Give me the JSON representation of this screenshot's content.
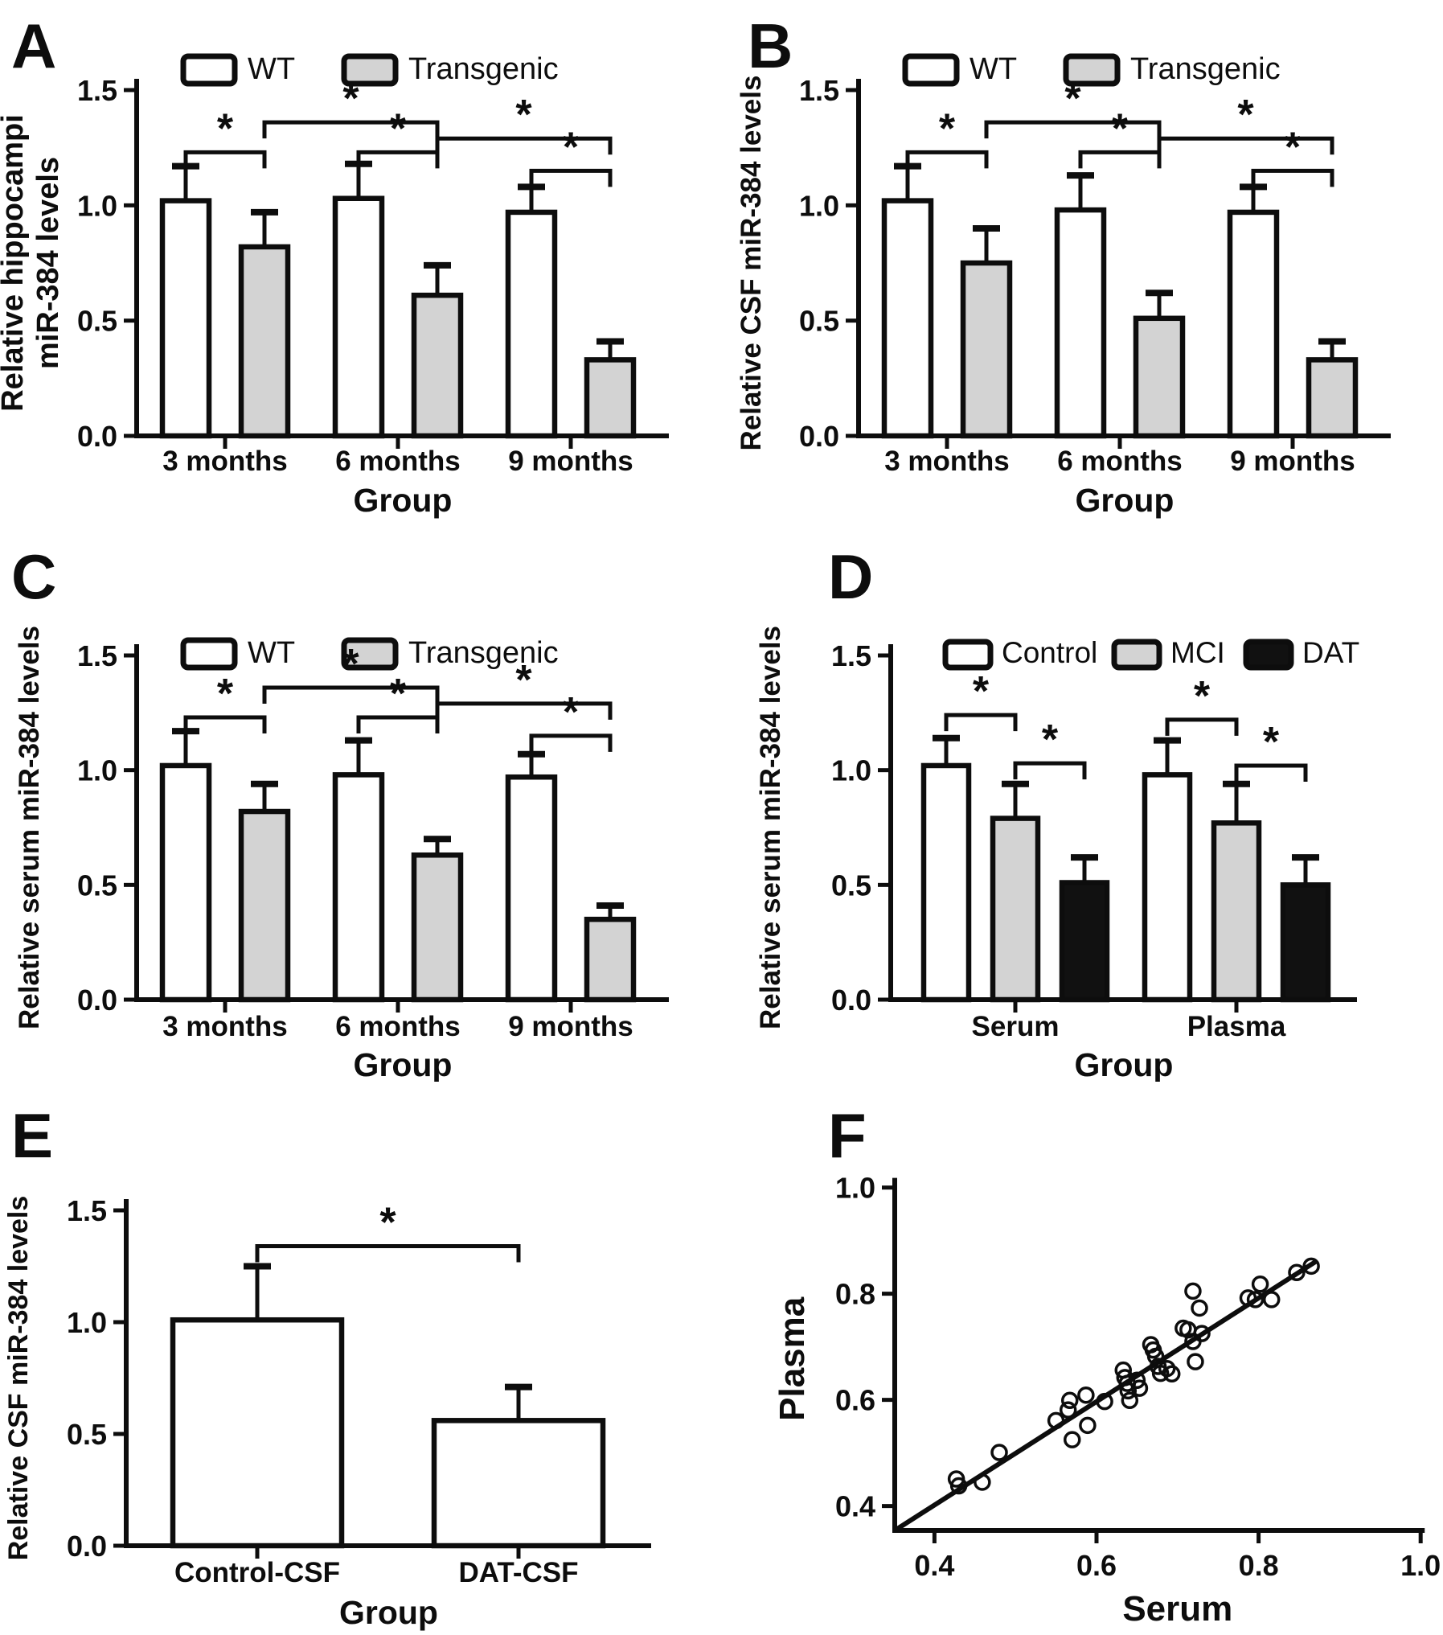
{
  "figure": {
    "background": "#ffffff",
    "ink_color": "#0d0d0d",
    "bar_fill_white": "#ffffff",
    "bar_fill_gray": "#d3d3d3",
    "bar_fill_black": "#111111",
    "significance_symbol": "*"
  },
  "chart_data": [
    {
      "id": "A",
      "type": "bar",
      "panel_letter": "A",
      "ylabel_lines": [
        "Relative hippocampi",
        "miR-384 levels"
      ],
      "xlabel": "Group",
      "yticks": [
        "0.0",
        "0.5",
        "1.0",
        "1.5"
      ],
      "ylim": [
        0,
        1.5
      ],
      "categories": [
        "3 months",
        "6 months",
        "9 months"
      ],
      "series": [
        {
          "name": "WT",
          "fill": "#ffffff",
          "values": [
            1.02,
            1.03,
            0.97
          ],
          "errors": [
            0.15,
            0.15,
            0.11
          ]
        },
        {
          "name": "Transgenic",
          "fill": "#d3d3d3",
          "values": [
            0.82,
            0.61,
            0.33
          ],
          "errors": [
            0.15,
            0.13,
            0.08
          ]
        }
      ],
      "significance": [
        {
          "a": [
            0,
            0
          ],
          "b": [
            0,
            1
          ],
          "y": 1.23,
          "label": "*"
        },
        {
          "a": [
            1,
            0
          ],
          "b": [
            1,
            1
          ],
          "y": 1.23,
          "label": "*"
        },
        {
          "a": [
            2,
            0
          ],
          "b": [
            2,
            1
          ],
          "y": 1.15,
          "label": "*"
        },
        {
          "a": [
            0,
            1
          ],
          "b": [
            1,
            1
          ],
          "y": 1.36,
          "label": "*"
        },
        {
          "a": [
            1,
            1
          ],
          "b": [
            2,
            1
          ],
          "y": 1.29,
          "label": "*"
        }
      ]
    },
    {
      "id": "B",
      "type": "bar",
      "panel_letter": "B",
      "ylabel_lines": [
        "Relative CSF miR-384 levels"
      ],
      "xlabel": "Group",
      "yticks": [
        "0.0",
        "0.5",
        "1.0",
        "1.5"
      ],
      "ylim": [
        0,
        1.5
      ],
      "categories": [
        "3 months",
        "6 months",
        "9 months"
      ],
      "series": [
        {
          "name": "WT",
          "fill": "#ffffff",
          "values": [
            1.02,
            0.98,
            0.97
          ],
          "errors": [
            0.15,
            0.15,
            0.11
          ]
        },
        {
          "name": "Transgenic",
          "fill": "#d3d3d3",
          "values": [
            0.75,
            0.51,
            0.33
          ],
          "errors": [
            0.15,
            0.11,
            0.08
          ]
        }
      ],
      "significance": [
        {
          "a": [
            0,
            0
          ],
          "b": [
            0,
            1
          ],
          "y": 1.23,
          "label": "*"
        },
        {
          "a": [
            1,
            0
          ],
          "b": [
            1,
            1
          ],
          "y": 1.23,
          "label": "*"
        },
        {
          "a": [
            2,
            0
          ],
          "b": [
            2,
            1
          ],
          "y": 1.15,
          "label": "*"
        },
        {
          "a": [
            0,
            1
          ],
          "b": [
            1,
            1
          ],
          "y": 1.36,
          "label": "*"
        },
        {
          "a": [
            1,
            1
          ],
          "b": [
            2,
            1
          ],
          "y": 1.29,
          "label": "*"
        }
      ]
    },
    {
      "id": "C",
      "type": "bar",
      "panel_letter": "C",
      "ylabel_lines": [
        "Relative serum miR-384 levels"
      ],
      "xlabel": "Group",
      "yticks": [
        "0.0",
        "0.5",
        "1.0",
        "1.5"
      ],
      "ylim": [
        0,
        1.5
      ],
      "categories": [
        "3 months",
        "6 months",
        "9 months"
      ],
      "series": [
        {
          "name": "WT",
          "fill": "#ffffff",
          "values": [
            1.02,
            0.98,
            0.97
          ],
          "errors": [
            0.15,
            0.15,
            0.1
          ]
        },
        {
          "name": "Transgenic",
          "fill": "#d3d3d3",
          "values": [
            0.82,
            0.63,
            0.35
          ],
          "errors": [
            0.12,
            0.07,
            0.06
          ]
        }
      ],
      "significance": [
        {
          "a": [
            0,
            0
          ],
          "b": [
            0,
            1
          ],
          "y": 1.23,
          "label": "*"
        },
        {
          "a": [
            1,
            0
          ],
          "b": [
            1,
            1
          ],
          "y": 1.23,
          "label": "*"
        },
        {
          "a": [
            2,
            0
          ],
          "b": [
            2,
            1
          ],
          "y": 1.15,
          "label": "*"
        },
        {
          "a": [
            0,
            1
          ],
          "b": [
            1,
            1
          ],
          "y": 1.36,
          "label": "*"
        },
        {
          "a": [
            1,
            1
          ],
          "b": [
            2,
            1
          ],
          "y": 1.29,
          "label": "*"
        }
      ]
    },
    {
      "id": "D",
      "type": "bar",
      "panel_letter": "D",
      "ylabel_lines": [
        "Relative serum miR-384 levels"
      ],
      "xlabel": "Group",
      "yticks": [
        "0.0",
        "0.5",
        "1.0",
        "1.5"
      ],
      "ylim": [
        0,
        1.5
      ],
      "categories": [
        "Serum",
        "Plasma"
      ],
      "series": [
        {
          "name": "Control",
          "fill": "#ffffff",
          "values": [
            1.02,
            0.98
          ],
          "errors": [
            0.12,
            0.15
          ]
        },
        {
          "name": "MCI",
          "fill": "#d3d3d3",
          "values": [
            0.79,
            0.77
          ],
          "errors": [
            0.15,
            0.17
          ]
        },
        {
          "name": "DAT",
          "fill": "#111111",
          "values": [
            0.51,
            0.5
          ],
          "errors": [
            0.11,
            0.12
          ]
        }
      ],
      "significance": [
        {
          "a": [
            0,
            0
          ],
          "b": [
            0,
            1
          ],
          "y": 1.24,
          "label": "*"
        },
        {
          "a": [
            0,
            1
          ],
          "b": [
            0,
            2
          ],
          "y": 1.03,
          "label": "*"
        },
        {
          "a": [
            1,
            0
          ],
          "b": [
            1,
            1
          ],
          "y": 1.22,
          "label": "*"
        },
        {
          "a": [
            1,
            1
          ],
          "b": [
            1,
            2
          ],
          "y": 1.02,
          "label": "*"
        }
      ]
    },
    {
      "id": "E",
      "type": "bar",
      "panel_letter": "E",
      "ylabel_lines": [
        "Relative CSF miR-384 levels"
      ],
      "xlabel": "Group",
      "yticks": [
        "0.0",
        "0.5",
        "1.0",
        "1.5"
      ],
      "ylim": [
        0,
        1.5
      ],
      "categories": [
        "Control-CSF",
        "DAT-CSF"
      ],
      "series": [
        {
          "name": null,
          "fill": "#ffffff",
          "values": [
            1.01,
            0.56
          ],
          "errors": [
            0.24,
            0.15
          ]
        }
      ],
      "significance": [
        {
          "a": [
            0,
            0
          ],
          "b": [
            1,
            0
          ],
          "y": 1.34,
          "label": "*"
        }
      ]
    },
    {
      "id": "F",
      "type": "scatter",
      "panel_letter": "F",
      "xlabel": "Serum",
      "ylabel": "Plasma",
      "xticks": [
        "0.4",
        "0.6",
        "0.8",
        "1.0"
      ],
      "yticks": [
        "0.4",
        "0.6",
        "0.8",
        "1.0"
      ],
      "xlim": [
        0.351,
        1.005
      ],
      "ylim": [
        0.354,
        1.01
      ],
      "points": [
        [
          0.427,
          0.451
        ],
        [
          0.43,
          0.438
        ],
        [
          0.459,
          0.445
        ],
        [
          0.48,
          0.501
        ],
        [
          0.55,
          0.561
        ],
        [
          0.565,
          0.581
        ],
        [
          0.567,
          0.599
        ],
        [
          0.57,
          0.525
        ],
        [
          0.587,
          0.609
        ],
        [
          0.589,
          0.552
        ],
        [
          0.61,
          0.597
        ],
        [
          0.633,
          0.656
        ],
        [
          0.635,
          0.642
        ],
        [
          0.638,
          0.631
        ],
        [
          0.639,
          0.617
        ],
        [
          0.641,
          0.599
        ],
        [
          0.65,
          0.637
        ],
        [
          0.653,
          0.622
        ],
        [
          0.667,
          0.704
        ],
        [
          0.67,
          0.694
        ],
        [
          0.673,
          0.682
        ],
        [
          0.676,
          0.663
        ],
        [
          0.679,
          0.65
        ],
        [
          0.687,
          0.659
        ],
        [
          0.693,
          0.649
        ],
        [
          0.707,
          0.735
        ],
        [
          0.713,
          0.732
        ],
        [
          0.719,
          0.805
        ],
        [
          0.719,
          0.71
        ],
        [
          0.722,
          0.672
        ],
        [
          0.727,
          0.773
        ],
        [
          0.73,
          0.725
        ],
        [
          0.787,
          0.792
        ],
        [
          0.796,
          0.789
        ],
        [
          0.802,
          0.818
        ],
        [
          0.816,
          0.789
        ],
        [
          0.847,
          0.84
        ],
        [
          0.865,
          0.852
        ]
      ],
      "fit_line": {
        "x1": 0.351,
        "y1": 0.354,
        "x2": 0.872,
        "y2": 0.862
      }
    }
  ]
}
